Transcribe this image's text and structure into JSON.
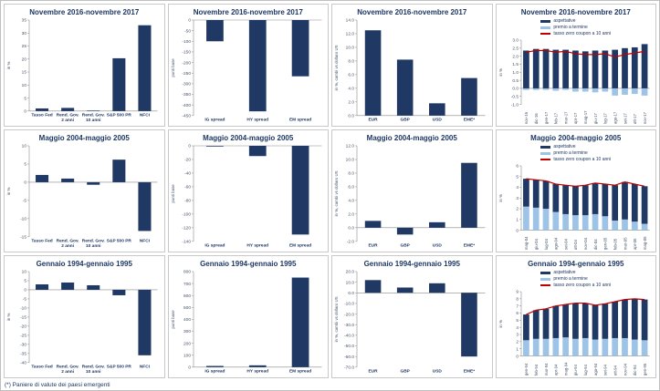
{
  "page": {
    "footnote": "(*) Paniere di valute dei paesi emergenti"
  },
  "colors": {
    "navy": "#1F3864",
    "light_blue": "#9DC3E6",
    "red": "#C00000",
    "axis": "#8A8A8A",
    "tick_text": "#44546A"
  },
  "chart_data": [
    {
      "type": "bar",
      "title": "Novembre 2016-novembre 2017",
      "ylabel": "in %",
      "categories": [
        [
          "Tasso Fed"
        ],
        [
          "Rend. Gov.",
          "2 anni"
        ],
        [
          "Rend. Gov.",
          "10 anni"
        ],
        [
          "S&P 500 PR"
        ],
        [
          "NFCI"
        ]
      ],
      "values": [
        1.0,
        1.2,
        0.2,
        20.3,
        33.0
      ],
      "ylim": [
        0,
        35
      ],
      "ystep": 5,
      "ydec": 0,
      "grid": false
    },
    {
      "type": "bar",
      "title": "Novembre 2016-novembre 2017",
      "ylabel": "punti base",
      "categories": [
        "IG spread",
        "HY spread",
        "EM spread"
      ],
      "values": [
        -100,
        -430,
        -265
      ],
      "ylim": [
        -450,
        0
      ],
      "ystep": 50,
      "ydec": 0,
      "grid": false
    },
    {
      "type": "bar",
      "title": "Novembre 2016-novembre 2017",
      "ylabel": "in %, cambi vs dollaro US",
      "categories": [
        "EUR",
        "GBP",
        "USD",
        "EME*"
      ],
      "values": [
        12.5,
        8.2,
        1.8,
        5.5
      ],
      "ylim": [
        0,
        14
      ],
      "ystep": 2,
      "ydec": 1,
      "grid": false
    },
    {
      "type": "stacked-bar-line",
      "title": "Novembre 2016-novembre 2017",
      "ylabel": "in %",
      "categories": [
        "nov-16",
        "dic-16",
        "gen-17",
        "feb-17",
        "mar-17",
        "apr-17",
        "mag-17",
        "giu-17",
        "lug-17",
        "ago-17",
        "set-17",
        "ott-17",
        "nov-17"
      ],
      "series": [
        {
          "name": "premio a termine",
          "color": "light",
          "values": [
            -0.1,
            -0.1,
            -0.1,
            -0.15,
            -0.1,
            -0.2,
            -0.2,
            -0.25,
            -0.2,
            -0.45,
            -0.4,
            -0.35,
            -0.45
          ]
        },
        {
          "name": "aspettative",
          "color": "dark",
          "values": [
            2.35,
            2.45,
            2.45,
            2.4,
            2.4,
            2.35,
            2.3,
            2.35,
            2.35,
            2.4,
            2.5,
            2.55,
            2.75
          ]
        }
      ],
      "line": {
        "name": "tasso zero coupon a 10 anni",
        "values": [
          2.25,
          2.35,
          2.35,
          2.25,
          2.3,
          2.15,
          2.1,
          2.1,
          2.15,
          1.95,
          2.1,
          2.2,
          2.3
        ]
      },
      "legend": [
        "aspettative",
        "premio a termine",
        "tasso zero coupon a 10 anni"
      ],
      "legend_position": "top",
      "ylim": [
        -1,
        3
      ],
      "ystep": 0.5,
      "ydec": 1,
      "xrot": true,
      "grid": false
    },
    {
      "type": "bar",
      "title": "Maggio 2004-maggio 2005",
      "ylabel": "in %",
      "categories": [
        [
          "Tasso Fed"
        ],
        [
          "Rend. Gov.",
          "2 anni"
        ],
        [
          "Rend. Gov.",
          "10 anni"
        ],
        [
          "S&P 500 PR"
        ],
        [
          "NFCI"
        ]
      ],
      "values": [
        2.0,
        1.0,
        -0.7,
        6.2,
        -13.4
      ],
      "ylim": [
        -15,
        10
      ],
      "ystep": 5,
      "ydec": 0,
      "grid": false
    },
    {
      "type": "bar",
      "title": "Maggio 2004-maggio 2005",
      "ylabel": "punti base",
      "categories": [
        "IG spread",
        "HY spread",
        "EM spread"
      ],
      "values": [
        -1,
        -15,
        -130
      ],
      "ylim": [
        -140,
        0
      ],
      "ystep": 20,
      "ydec": 0,
      "grid": false
    },
    {
      "type": "bar",
      "title": "Maggio 2004-maggio 2005",
      "ylabel": "in %, cambi vs dollaro US",
      "categories": [
        "EUR",
        "GBP",
        "USD",
        "EME*"
      ],
      "values": [
        1.0,
        -1.0,
        0.8,
        9.5
      ],
      "ylim": [
        -2,
        12
      ],
      "ystep": 2,
      "ydec": 1,
      "grid": false
    },
    {
      "type": "stacked-bar-line",
      "title": "Maggio 2004-maggio 2005",
      "ylabel": "in %",
      "categories": [
        "mag-04",
        "giu-04",
        "lug-04",
        "ago-04",
        "set-04",
        "ott-04",
        "nov-04",
        "dic-04",
        "gen-05",
        "feb-05",
        "mar-05",
        "apr-05",
        "mag-05"
      ],
      "series": [
        {
          "name": "premio a termine",
          "color": "light",
          "values": [
            2.2,
            2.1,
            2.0,
            1.7,
            1.5,
            1.4,
            1.4,
            1.5,
            1.3,
            0.9,
            1.0,
            0.8,
            0.6
          ]
        },
        {
          "name": "aspettative",
          "color": "dark",
          "values": [
            2.6,
            2.6,
            2.6,
            2.6,
            2.7,
            2.7,
            2.8,
            2.9,
            3.0,
            3.3,
            3.5,
            3.5,
            3.5
          ]
        }
      ],
      "line": {
        "name": "tasso zero coupon a 10 anni",
        "values": [
          4.8,
          4.7,
          4.6,
          4.3,
          4.2,
          4.1,
          4.2,
          4.4,
          4.3,
          4.2,
          4.5,
          4.3,
          4.1
        ]
      },
      "legend": [
        "aspettative",
        "premio a termine",
        "tasso zero coupon a 10 anni"
      ],
      "legend_position": "top",
      "ylim": [
        0,
        6
      ],
      "ystep": 1,
      "ydec": 0,
      "xrot": true,
      "grid": false
    },
    {
      "type": "bar",
      "title": "Gennaio 1994-gennaio 1995",
      "ylabel": "in %",
      "categories": [
        [
          "Tasso Fed"
        ],
        [
          "Rend. Gov.",
          "2 anni"
        ],
        [
          "Rend. Gov.",
          "10 anni"
        ],
        [
          "S&P 500 PR"
        ],
        [
          "NFCI"
        ]
      ],
      "values": [
        3.0,
        4.0,
        2.5,
        -3.0,
        -36.0
      ],
      "ylim": [
        -40,
        10
      ],
      "ystep": 5,
      "ydec": 0,
      "grid": false
    },
    {
      "type": "bar",
      "title": "Gennaio 1994-gennaio 1995",
      "ylabel": "punti base",
      "categories": [
        "IG spread",
        "HY spread",
        "EM spread"
      ],
      "values": [
        10,
        15,
        750
      ],
      "ylim": [
        0,
        800
      ],
      "ystep": 100,
      "ydec": 0,
      "grid": false
    },
    {
      "type": "bar",
      "title": "Gennaio 1994-gennaio 1995",
      "ylabel": "in %, cambi vs dollaro US",
      "categories": [
        "EUR",
        "GBP",
        "USD",
        "EME*"
      ],
      "values": [
        12.0,
        5.0,
        9.0,
        -60.0
      ],
      "ylim": [
        -70,
        20
      ],
      "ystep": 10,
      "ydec": 1,
      "grid": false
    },
    {
      "type": "stacked-bar-line",
      "title": "Gennaio 1994-gennaio 1995",
      "ylabel": "in %",
      "categories": [
        "gen-94",
        "feb-94",
        "mar-94",
        "apr-94",
        "mag-94",
        "giu-94",
        "lug-94",
        "ago-94",
        "set-94",
        "ott-94",
        "nov-94",
        "dic-94",
        "gen-95"
      ],
      "series": [
        {
          "name": "premio a termine",
          "color": "light",
          "values": [
            2.2,
            2.4,
            2.4,
            2.5,
            2.6,
            2.4,
            2.5,
            2.3,
            2.4,
            2.5,
            2.5,
            2.3,
            2.2
          ]
        },
        {
          "name": "aspettative",
          "color": "dark",
          "values": [
            3.6,
            4.0,
            4.2,
            4.5,
            4.6,
            5.0,
            4.9,
            4.8,
            4.9,
            5.1,
            5.4,
            5.7,
            5.7
          ]
        }
      ],
      "line": {
        "name": "tasso zero coupon a 10 anni",
        "values": [
          5.8,
          6.4,
          6.6,
          7.0,
          7.2,
          7.4,
          7.4,
          7.1,
          7.3,
          7.6,
          7.9,
          8.0,
          7.9
        ]
      },
      "legend": [
        "aspettative",
        "premio a termine",
        "tasso zero coupon a 10 anni"
      ],
      "legend_position": "top",
      "ylim": [
        0,
        9
      ],
      "ystep": 1,
      "ydec": 0,
      "xrot": true,
      "grid": false
    }
  ]
}
